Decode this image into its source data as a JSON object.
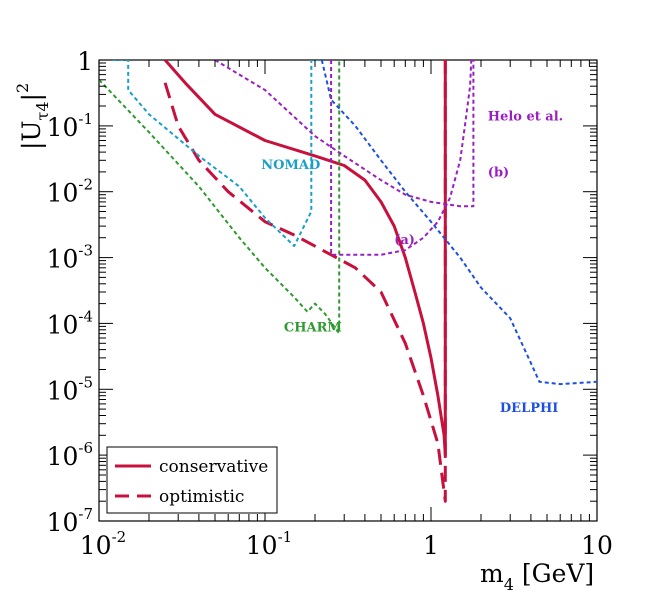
{
  "chart_data": {
    "type": "line",
    "x_scale": "log",
    "y_scale": "log",
    "xlim": [
      0.01,
      10
    ],
    "ylim": [
      1e-07,
      1
    ],
    "xlabel": {
      "base": "m",
      "sub": "4",
      "unit": " [GeV]"
    },
    "ylabel": {
      "base": "|U",
      "sub": "τ4",
      "close": "|",
      "sup": "2"
    },
    "x_ticks": [
      {
        "value": 0.01,
        "base": "10",
        "exp": "-2"
      },
      {
        "value": 0.1,
        "base": "10",
        "exp": "-1"
      },
      {
        "value": 1,
        "base": "1",
        "exp": ""
      },
      {
        "value": 10,
        "base": "10",
        "exp": ""
      }
    ],
    "y_ticks": [
      {
        "value": 1,
        "base": "1",
        "exp": ""
      },
      {
        "value": 0.1,
        "base": "10",
        "exp": "-1"
      },
      {
        "value": 0.01,
        "base": "10",
        "exp": "-2"
      },
      {
        "value": 0.001,
        "base": "10",
        "exp": "-3"
      },
      {
        "value": 0.0001,
        "base": "10",
        "exp": "-4"
      },
      {
        "value": 1e-05,
        "base": "10",
        "exp": "-5"
      },
      {
        "value": 1e-06,
        "base": "10",
        "exp": "-6"
      },
      {
        "value": 1e-07,
        "base": "10",
        "exp": "-7"
      }
    ],
    "series": [
      {
        "name": "conservative",
        "color": "#c8103c",
        "style": "solid",
        "points": [
          [
            0.025,
            1
          ],
          [
            0.033,
            0.45
          ],
          [
            0.05,
            0.15
          ],
          [
            0.1,
            0.06
          ],
          [
            0.2,
            0.035
          ],
          [
            0.3,
            0.025
          ],
          [
            0.4,
            0.015
          ],
          [
            0.5,
            0.007
          ],
          [
            0.6,
            0.003
          ],
          [
            0.7,
            0.001
          ],
          [
            0.8,
            0.0003
          ],
          [
            0.9,
            0.0001
          ],
          [
            1.0,
            3e-05
          ],
          [
            1.1,
            8e-06
          ],
          [
            1.2,
            2e-06
          ],
          [
            1.22,
            1e-06
          ],
          [
            1.22,
            1
          ]
        ]
      },
      {
        "name": "optimistic",
        "color": "#c8103c",
        "style": "dash",
        "points": [
          [
            0.025,
            0.45
          ],
          [
            0.03,
            0.1
          ],
          [
            0.04,
            0.03
          ],
          [
            0.06,
            0.01
          ],
          [
            0.1,
            0.0035
          ],
          [
            0.15,
            0.0022
          ],
          [
            0.25,
            0.0011
          ],
          [
            0.35,
            0.0007
          ],
          [
            0.5,
            0.0003
          ],
          [
            0.7,
            5e-05
          ],
          [
            0.9,
            8e-06
          ],
          [
            1.1,
            1.5e-06
          ],
          [
            1.22,
            2e-07
          ],
          [
            1.22,
            1e-06
          ],
          [
            1.22,
            1
          ]
        ]
      },
      {
        "name": "NOMAD",
        "color": "#1aa0c8",
        "style": "dot",
        "points": [
          [
            0.012,
            1
          ],
          [
            0.015,
            1
          ],
          [
            0.015,
            0.35
          ],
          [
            0.02,
            0.15
          ],
          [
            0.04,
            0.035
          ],
          [
            0.07,
            0.012
          ],
          [
            0.1,
            0.004
          ],
          [
            0.15,
            0.0015
          ],
          [
            0.19,
            0.005
          ],
          [
            0.19,
            1
          ],
          [
            0.22,
            1
          ]
        ]
      },
      {
        "name": "CHARM",
        "color": "#2f9a2f",
        "style": "dot",
        "points": [
          [
            0.01,
            0.5
          ],
          [
            0.02,
            0.08
          ],
          [
            0.04,
            0.012
          ],
          [
            0.07,
            0.002
          ],
          [
            0.1,
            0.0007
          ],
          [
            0.15,
            0.00025
          ],
          [
            0.18,
            0.00015
          ],
          [
            0.2,
            0.0002
          ],
          [
            0.23,
            0.00014
          ],
          [
            0.28,
            7e-05
          ],
          [
            0.28,
            1
          ]
        ]
      },
      {
        "name": "DELPHI",
        "color": "#1e4fe0",
        "style": "dot",
        "points": [
          [
            0.22,
            1
          ],
          [
            0.25,
            0.25
          ],
          [
            0.35,
            0.1
          ],
          [
            0.5,
            0.03
          ],
          [
            0.7,
            0.01
          ],
          [
            1.0,
            0.0035
          ],
          [
            1.5,
            0.001
          ],
          [
            2.0,
            0.00035
          ],
          [
            3.0,
            0.00012
          ],
          [
            4.0,
            2.5e-05
          ],
          [
            4.5,
            1.3e-05
          ],
          [
            6.0,
            1.2e-05
          ],
          [
            10,
            1.3e-05
          ]
        ]
      },
      {
        "name": "Helo et al. (a)",
        "color": "#9b1fc0",
        "style": "dot",
        "points": [
          [
            0.25,
            1
          ],
          [
            0.25,
            0.0011
          ],
          [
            0.35,
            0.0011
          ],
          [
            0.5,
            0.0011
          ],
          [
            0.7,
            0.0013
          ],
          [
            0.9,
            0.002
          ],
          [
            1.1,
            0.0035
          ],
          [
            1.3,
            0.008
          ],
          [
            1.5,
            0.03
          ],
          [
            1.6,
            0.1
          ],
          [
            1.72,
            0.4
          ],
          [
            1.75,
            1
          ]
        ]
      },
      {
        "name": "Helo et al. (b)",
        "color": "#9b1fc0",
        "style": "dot",
        "points": [
          [
            0.05,
            1
          ],
          [
            0.1,
            0.35
          ],
          [
            0.2,
            0.07
          ],
          [
            0.3,
            0.035
          ],
          [
            0.5,
            0.015
          ],
          [
            0.7,
            0.009
          ],
          [
            1.0,
            0.007
          ],
          [
            1.5,
            0.006
          ],
          [
            1.8,
            0.006
          ],
          [
            1.8,
            0.03
          ],
          [
            1.8,
            1
          ]
        ]
      }
    ],
    "annotations": [
      {
        "text": "NOMAD",
        "color": "#1aa0c8",
        "x": 0.095,
        "y": 0.022
      },
      {
        "text": "CHARM",
        "color": "#2f9a2f",
        "x": 0.13,
        "y": 7.5e-05
      },
      {
        "text": "DELPHI",
        "color": "#1e4fe0",
        "x": 2.6,
        "y": 4.5e-06
      },
      {
        "text": "Helo et al.",
        "color": "#9b1fc0",
        "x": 2.2,
        "y": 0.12
      },
      {
        "text": "(a)",
        "color": "#9b1fc0",
        "x": 0.6,
        "y": 0.0016
      },
      {
        "text": "(b)",
        "color": "#9b1fc0",
        "x": 2.2,
        "y": 0.017
      }
    ],
    "legend": {
      "position": "bottom-left",
      "entries": [
        {
          "label": "conservative",
          "series": 0
        },
        {
          "label": "optimistic",
          "series": 1
        }
      ]
    }
  }
}
